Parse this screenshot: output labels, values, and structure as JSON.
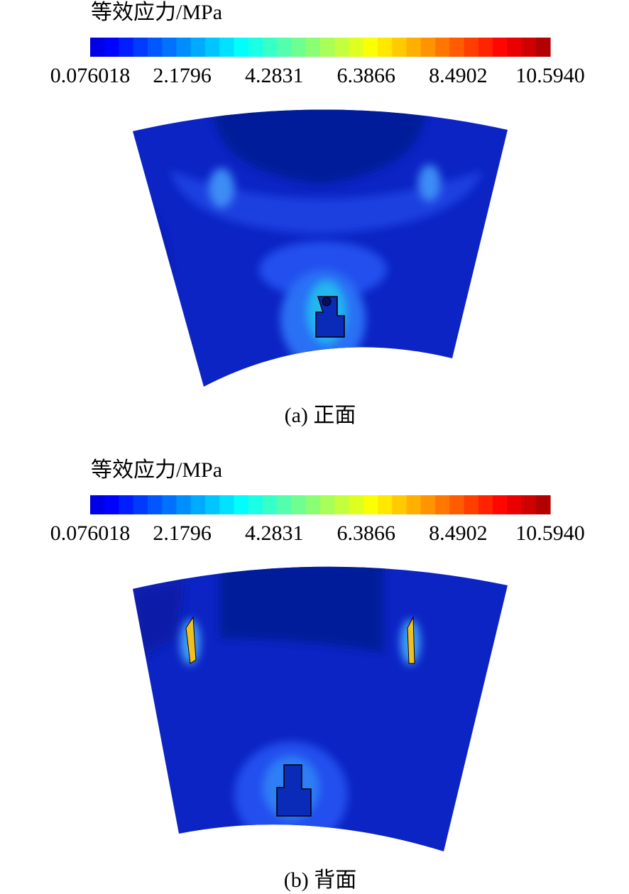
{
  "panels": [
    {
      "legend_title": "等效应力/MPa",
      "colorbar_labels": [
        "0.076018",
        "2.1796",
        "4.2831",
        "6.3866",
        "8.4902",
        "10.5940"
      ],
      "caption": "(a) 正面"
    },
    {
      "legend_title": "等效应力/MPa",
      "colorbar_labels": [
        "0.076018",
        "2.1796",
        "4.2831",
        "6.3866",
        "8.4902",
        "10.5940"
      ],
      "caption": "(b) 背面"
    }
  ]
}
